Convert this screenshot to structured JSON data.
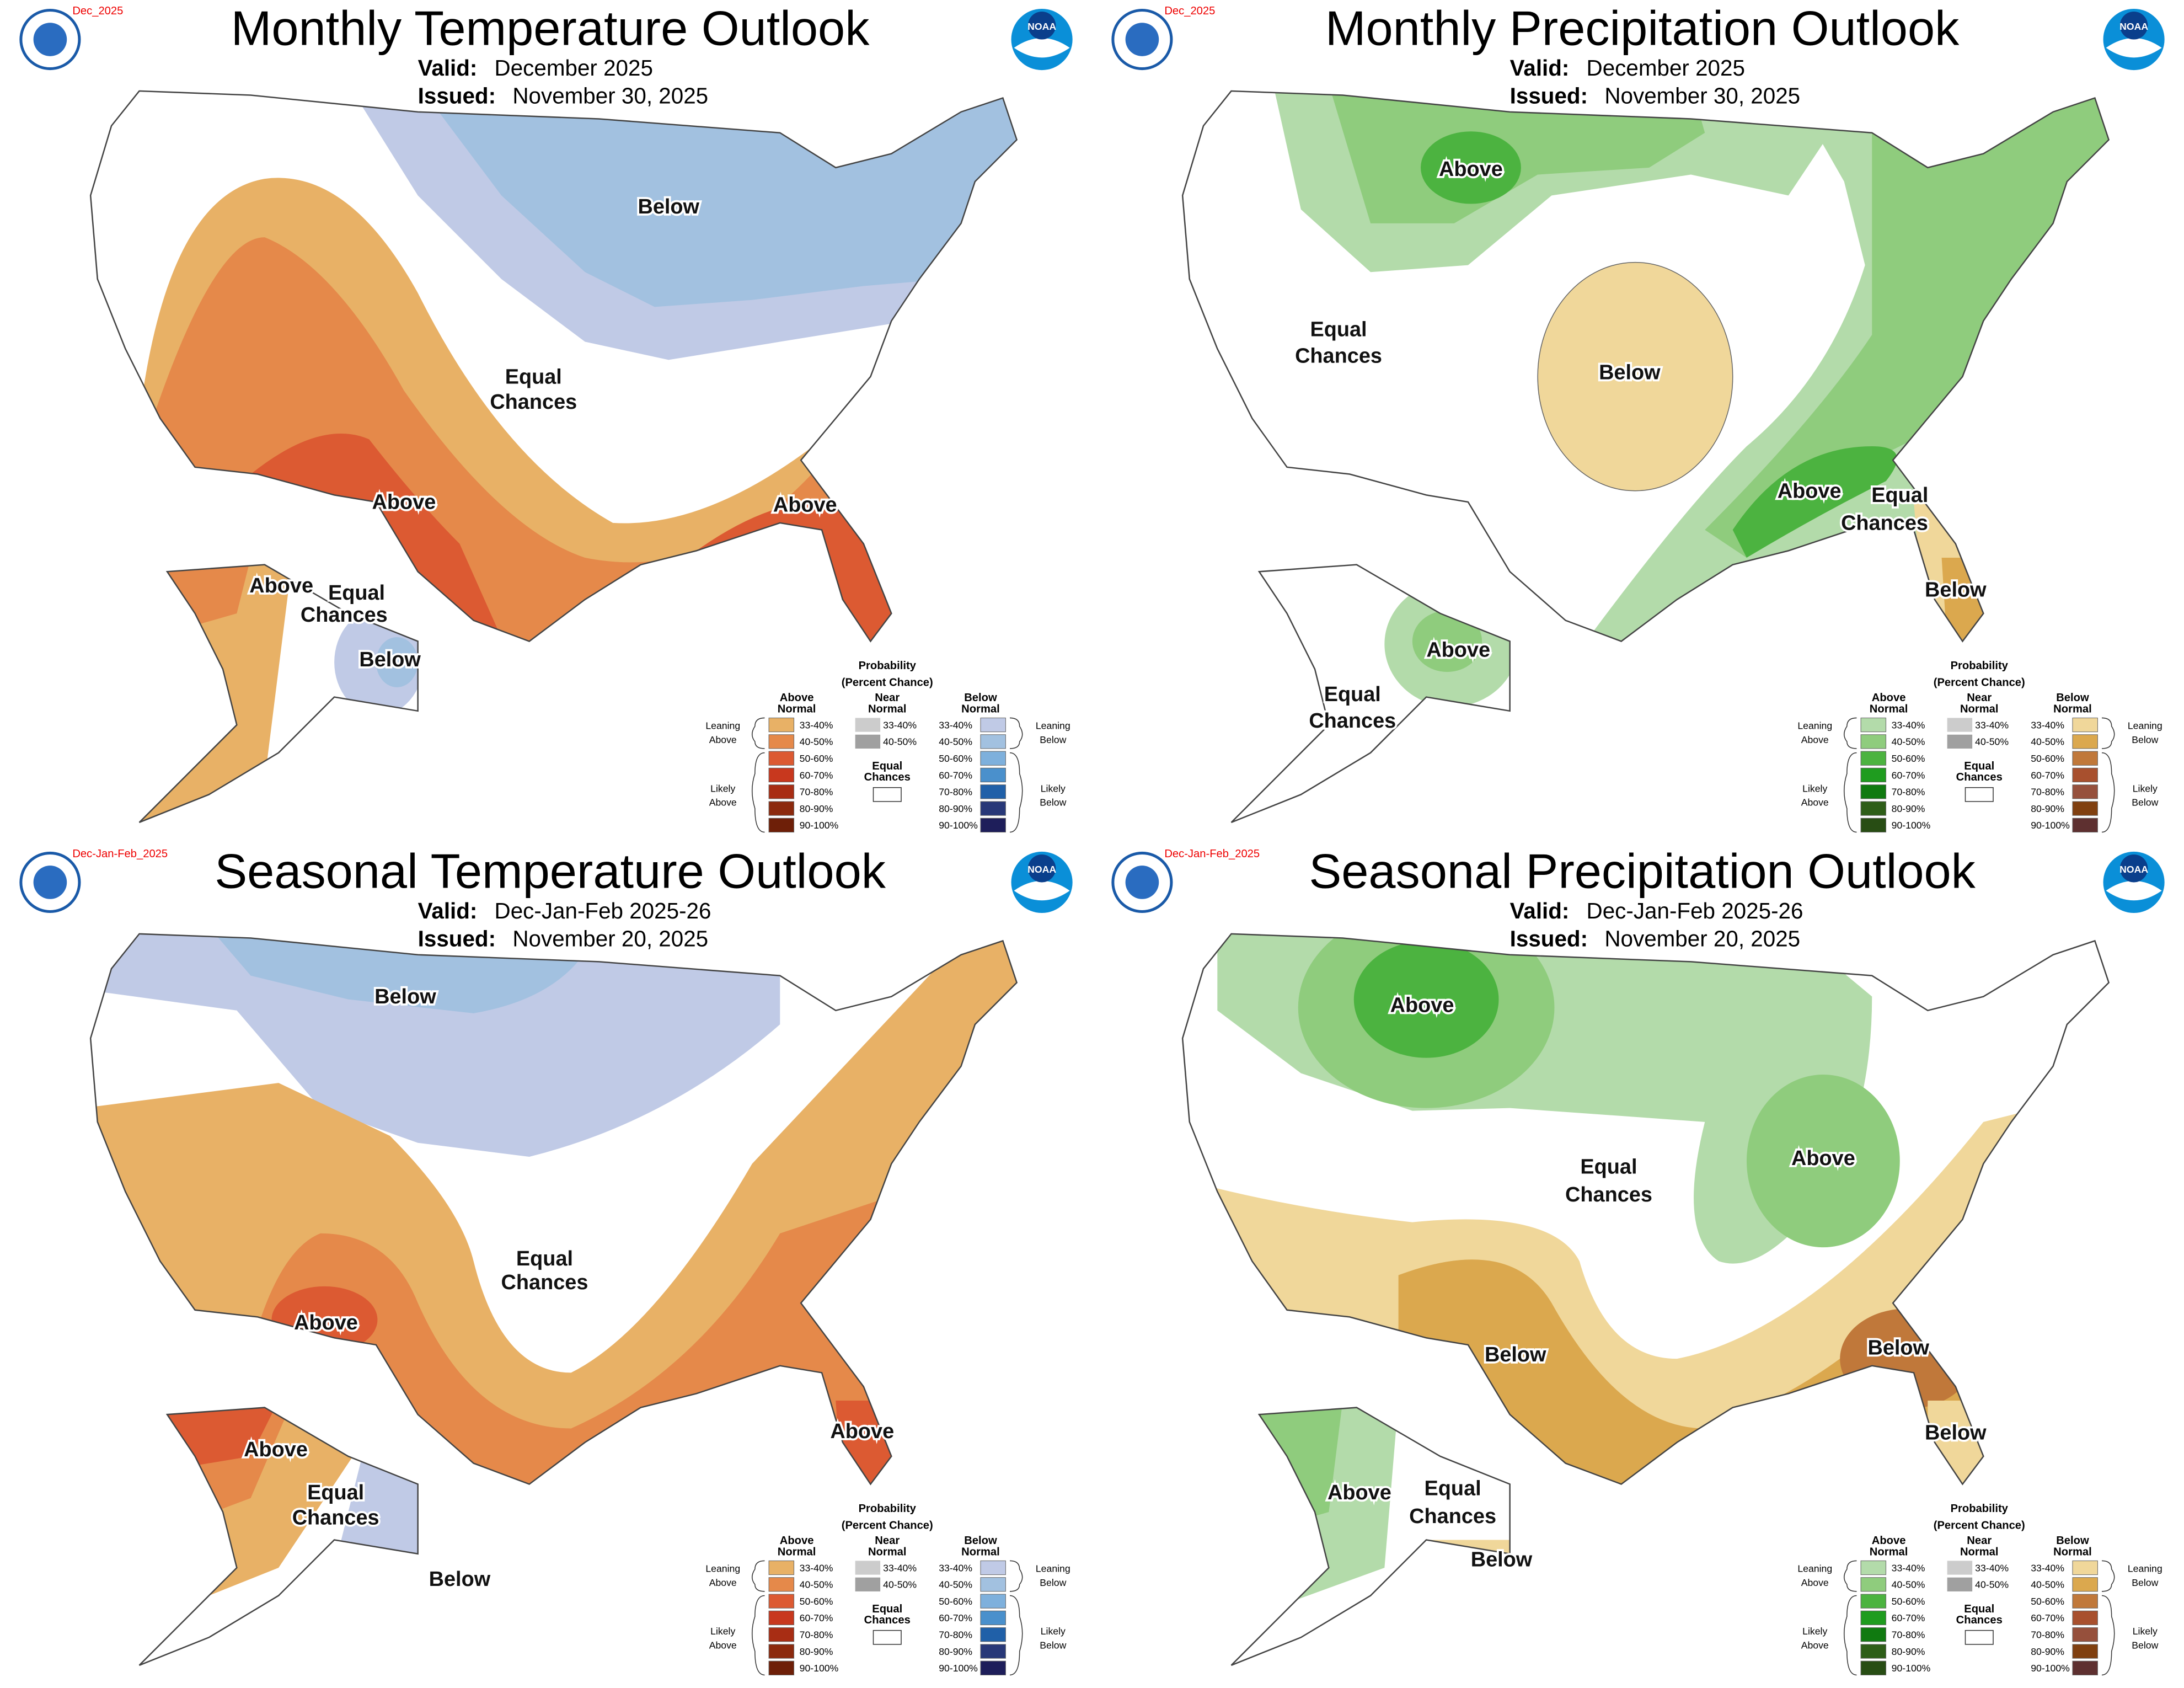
{
  "logo_text": "NOAA",
  "panels": [
    {
      "tag": "Dec_2025",
      "title": "Monthly Temperature Outlook",
      "valid_label": "Valid:",
      "valid": "December 2025",
      "issued_label": "Issued:",
      "issued": "November 30, 2025",
      "palette": "temperature",
      "labels": [
        {
          "lines": [
            "Below"
          ]
        },
        {
          "lines": [
            "Equal",
            "Chances"
          ]
        },
        {
          "lines": [
            "Above"
          ]
        },
        {
          "lines": [
            "Above"
          ]
        },
        {
          "lines": [
            "Above"
          ]
        },
        {
          "lines": [
            "Equal",
            "Chances"
          ]
        },
        {
          "lines": [
            "Below"
          ]
        }
      ]
    },
    {
      "tag": "Dec_2025",
      "title": "Monthly Precipitation Outlook",
      "valid_label": "Valid:",
      "valid": "December 2025",
      "issued_label": "Issued:",
      "issued": "November 30, 2025",
      "palette": "precipitation",
      "labels": [
        {
          "lines": [
            "Above"
          ]
        },
        {
          "lines": [
            "Equal",
            "Chances"
          ]
        },
        {
          "lines": [
            "Below"
          ]
        },
        {
          "lines": [
            "Above"
          ]
        },
        {
          "lines": [
            "Equal",
            "Chances"
          ]
        },
        {
          "lines": [
            "Below"
          ]
        },
        {
          "lines": [
            "Above"
          ]
        },
        {
          "lines": [
            "Equal",
            "Chances"
          ]
        }
      ]
    },
    {
      "tag": "Dec-Jan-Feb_2025",
      "title": "Seasonal Temperature Outlook",
      "valid_label": "Valid:",
      "valid": "Dec-Jan-Feb 2025-26",
      "issued_label": "Issued:",
      "issued": "November 20, 2025",
      "palette": "temperature",
      "labels": [
        {
          "lines": [
            "Below"
          ]
        },
        {
          "lines": [
            "Equal",
            "Chances"
          ]
        },
        {
          "lines": [
            "Above"
          ]
        },
        {
          "lines": [
            "Above"
          ]
        },
        {
          "lines": [
            "Above"
          ]
        },
        {
          "lines": [
            "Equal",
            "Chances"
          ]
        },
        {
          "lines": [
            "Below"
          ]
        }
      ]
    },
    {
      "tag": "Dec-Jan-Feb_2025",
      "title": "Seasonal Precipitation Outlook",
      "valid_label": "Valid:",
      "valid": "Dec-Jan-Feb 2025-26",
      "issued_label": "Issued:",
      "issued": "November 20, 2025",
      "palette": "precipitation",
      "labels": [
        {
          "lines": [
            "Above"
          ]
        },
        {
          "lines": [
            "Equal",
            "Chances"
          ]
        },
        {
          "lines": [
            "Above"
          ]
        },
        {
          "lines": [
            "Below"
          ]
        },
        {
          "lines": [
            "Below"
          ]
        },
        {
          "lines": [
            "Below"
          ]
        },
        {
          "lines": [
            "Above"
          ]
        },
        {
          "lines": [
            "Equal",
            "Chances"
          ]
        },
        {
          "lines": [
            "Below"
          ]
        }
      ]
    }
  ],
  "legend": {
    "title": "Probability",
    "subtitle": "(Percent Chance)",
    "above_header": [
      "Above",
      "Normal"
    ],
    "near_header": [
      "Near",
      "Normal"
    ],
    "below_header": [
      "Below",
      "Normal"
    ],
    "leaning_above": [
      "Leaning",
      "Above"
    ],
    "likely_above": [
      "Likely",
      "Above"
    ],
    "leaning_below": [
      "Leaning",
      "Below"
    ],
    "likely_below": [
      "Likely",
      "Below"
    ],
    "equal": [
      "Equal",
      "Chances"
    ],
    "ranges": [
      "33-40%",
      "40-50%",
      "50-60%",
      "60-70%",
      "70-80%",
      "80-90%",
      "90-100%"
    ]
  },
  "palettes": {
    "temperature": {
      "above": [
        "#e8b166",
        "#e5894a",
        "#dc5a32",
        "#c8381e",
        "#a82d14",
        "#8c2a0e",
        "#6e1f08"
      ],
      "below": [
        "#c0cae6",
        "#a2c1e0",
        "#7eb0dc",
        "#4a90cc",
        "#2060a8",
        "#283878",
        "#1e1e5a"
      ],
      "near": [
        "#cccccc",
        "#a0a0a0"
      ]
    },
    "precipitation": {
      "above": [
        "#b3dbaa",
        "#8fcc7d",
        "#4cb340",
        "#1f9c1f",
        "#107a10",
        "#2e5e18",
        "#284d14"
      ],
      "below": [
        "#f0d79a",
        "#dba84e",
        "#c0783a",
        "#a8502e",
        "#96503c",
        "#804010",
        "#5e3030"
      ],
      "near": [
        "#cccccc",
        "#a0a0a0"
      ]
    }
  }
}
